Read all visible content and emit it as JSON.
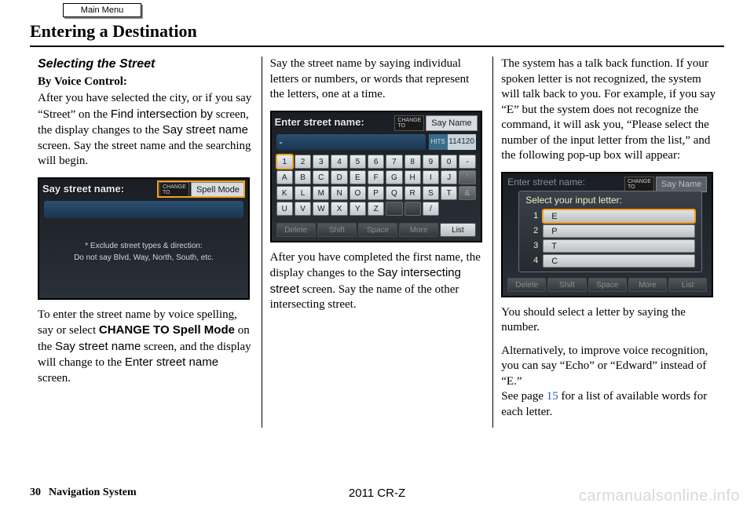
{
  "header": {
    "main_menu": "Main Menu",
    "page_title": "Entering a Destination"
  },
  "col1": {
    "subhead": "Selecting the Street",
    "byline": "By Voice Control:",
    "p1_a": "After you have selected the city, or if you say “Street” on the ",
    "p1_b_sans": "Find intersection by",
    "p1_c": " screen, the display changes to the ",
    "p1_d_sans": "Say street name",
    "p1_e": " screen. Say the street name and the searching will begin.",
    "screen": {
      "title": "Say street name:",
      "change_label": "CHANGE\nTO",
      "mode": "Spell Mode",
      "note1": "* Exclude street types & direction:",
      "note2": "Do not say Blvd, Way, North, South, etc."
    },
    "p2_a": "To enter the street name by voice spelling, say or select ",
    "p2_b_bold": "CHANGE TO Spell Mode",
    "p2_c": " on the ",
    "p2_d_sans": "Say street name",
    "p2_e": " screen, and the display will change to the ",
    "p2_f_sans": "Enter street name",
    "p2_g": " screen."
  },
  "col2": {
    "p1": "Say the street name by saying individual letters or numbers, or words that represent the letters, one at a time.",
    "screen": {
      "title": "Enter street name:",
      "change_label": "CHANGE\nTO",
      "mode": "Say Name",
      "input": "-",
      "hits_label": "HITS",
      "hits_value": "114120",
      "keys_row1": [
        "1",
        "2",
        "3",
        "4",
        "5",
        "6",
        "7",
        "8",
        "9",
        "0",
        "-"
      ],
      "keys_row2": [
        "A",
        "B",
        "C",
        "D",
        "E",
        "F",
        "G",
        "H",
        "I",
        "J",
        "'"
      ],
      "keys_row3": [
        "K",
        "L",
        "M",
        "N",
        "O",
        "P",
        "Q",
        "R",
        "S",
        "T",
        "&"
      ],
      "keys_row4": [
        "U",
        "V",
        "W",
        "X",
        "Y",
        "Z",
        "",
        "",
        "/",
        "",
        ""
      ],
      "bottom": [
        "Delete",
        "Shift",
        "Space",
        "More",
        "List"
      ],
      "highlight_colors": {
        "orange": "#f5a020"
      }
    },
    "p2_a": "After you have completed the first name, the display changes to the ",
    "p2_b_sans": "Say intersecting street",
    "p2_c": " screen. Say the name of the other intersecting street."
  },
  "col3": {
    "p1": "The system has a talk back function. If your spoken letter is not recognized, the system will talk back to you. For example, if you say “E” but the system does not recognize the command, it will ask you, “Please select the number of the input letter from the list,” and the following pop-up box will appear:",
    "screen": {
      "bg_title": "Enter street name:",
      "change_label": "CHANGE\nTO",
      "mode": "Say Name",
      "popup_title": "Select your input letter:",
      "options": [
        {
          "n": "1",
          "v": "E"
        },
        {
          "n": "2",
          "v": "P"
        },
        {
          "n": "3",
          "v": "T"
        },
        {
          "n": "4",
          "v": "C"
        }
      ],
      "bottom": [
        "Delete",
        "Shift",
        "Space",
        "More",
        "List"
      ]
    },
    "p2": "You should select a letter by saying the number.",
    "p3_a": "Alternatively, to improve voice recognition, you can say “Echo” or “Edward” instead of “E.”",
    "p4_a": "See page ",
    "p4_link": "15",
    "p4_b": " for a list of available words for each letter."
  },
  "footer": {
    "page_num": "30",
    "system": "Navigation System",
    "model": "2011 CR-Z"
  },
  "watermark": "carmanualsonline.info",
  "colors": {
    "screen_bg_top": "#1a1e24",
    "screen_bg_bottom": "#2a3038",
    "highlight": "#f5a020",
    "input_bar": "#2c5070",
    "key_light": "#e8ecee",
    "key_dim": "#787c80",
    "popup_text": "#e8f4c8"
  }
}
